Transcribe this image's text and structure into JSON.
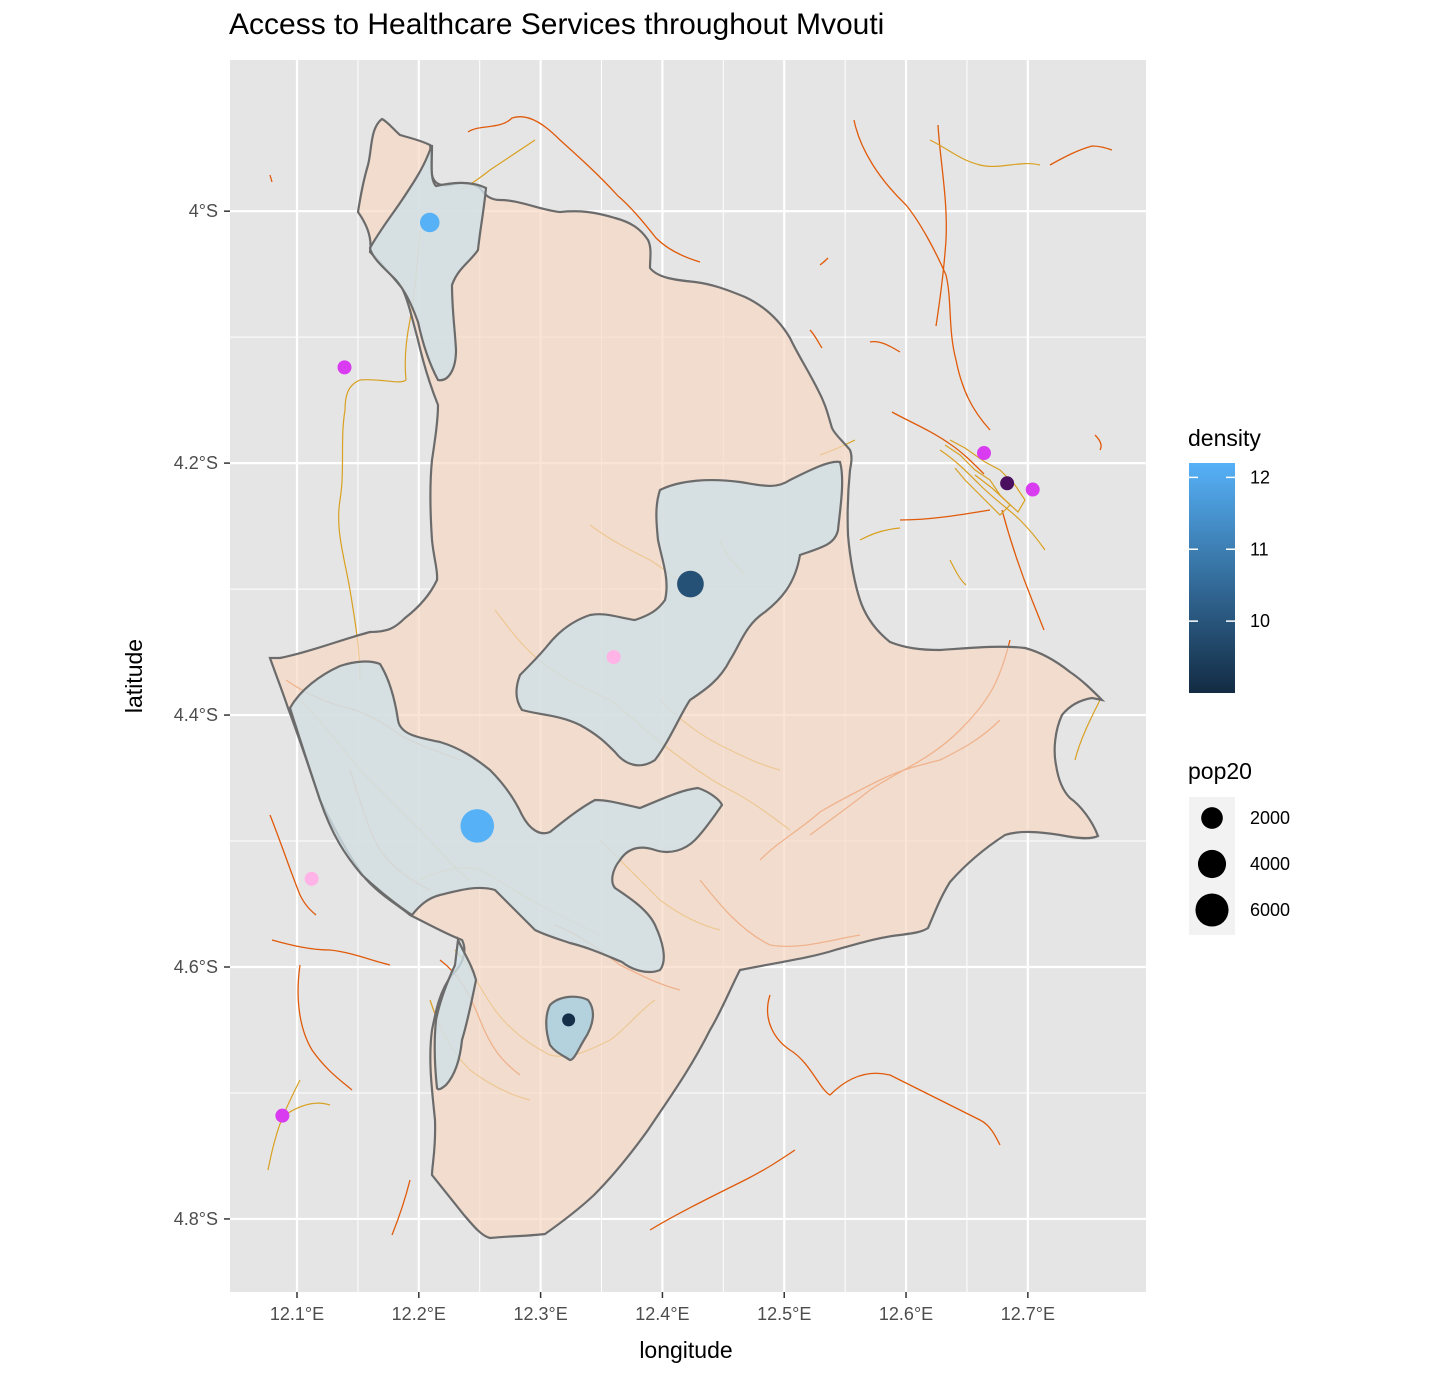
{
  "title": "Access to Healthcare Services throughout Mvouti",
  "map": {
    "xlabel": "longitude",
    "ylabel": "latitude",
    "x_ticks": [
      "12.1°E",
      "12.2°E",
      "12.3°E",
      "12.4°E",
      "12.5°E",
      "12.6°E",
      "12.7°E"
    ],
    "y_ticks": [
      "4°S",
      "4.2°S",
      "4.4°S",
      "4.6°S",
      "4.8°S"
    ],
    "x_tick_values": [
      12.1,
      12.2,
      12.3,
      12.4,
      12.5,
      12.6,
      12.7
    ],
    "y_tick_values": [
      -4.0,
      -4.2,
      -4.4,
      -4.6,
      -4.8
    ],
    "xlim": [
      12.045,
      12.797
    ],
    "ylim": [
      -4.858,
      -3.88
    ],
    "grid": true,
    "colors": {
      "panel": "#e5e5e5",
      "grid": "#ffffff",
      "region_fill": "#f7d9c4",
      "boundary": "#6b6b6b",
      "access_zone_fill": "#cfe0e6",
      "road_major": "#e05a0a",
      "road_minor": "#d9a021",
      "facility_magenta": "#d93cf0",
      "facility_pink": "#ffb3e6",
      "facility_purple": "#4a0f5e"
    },
    "density_points": [
      {
        "lon": 12.209,
        "lat": -4.009,
        "density": 12.2,
        "pop20": 1500
      },
      {
        "lon": 12.423,
        "lat": -4.296,
        "density": 9.9,
        "pop20": 3500
      },
      {
        "lon": 12.248,
        "lat": -4.488,
        "density": 12.2,
        "pop20": 6200
      },
      {
        "lon": 12.323,
        "lat": -4.642,
        "density": 9.1,
        "pop20": 400
      }
    ],
    "facilities": [
      {
        "lon": 12.139,
        "lat": -4.124,
        "color": "#d93cf0"
      },
      {
        "lon": 12.36,
        "lat": -4.354,
        "color": "#ffb3e6"
      },
      {
        "lon": 12.112,
        "lat": -4.53,
        "color": "#ffb3e6"
      },
      {
        "lon": 12.088,
        "lat": -4.718,
        "color": "#d93cf0"
      },
      {
        "lon": 12.664,
        "lat": -4.192,
        "color": "#d93cf0"
      },
      {
        "lon": 12.704,
        "lat": -4.221,
        "color": "#d93cf0"
      },
      {
        "lon": 12.683,
        "lat": -4.216,
        "color": "#4a0f5e"
      }
    ]
  },
  "legend_density": {
    "title": "density",
    "labels": [
      "12",
      "11",
      "10"
    ],
    "values": [
      12,
      11,
      10
    ],
    "range": [
      9.0,
      12.2
    ],
    "color_low": "#132b43",
    "color_high": "#56b1f7"
  },
  "legend_pop": {
    "title": "pop20",
    "labels": [
      "2000",
      "4000",
      "6000"
    ],
    "values": [
      2000,
      4000,
      6000
    ]
  }
}
